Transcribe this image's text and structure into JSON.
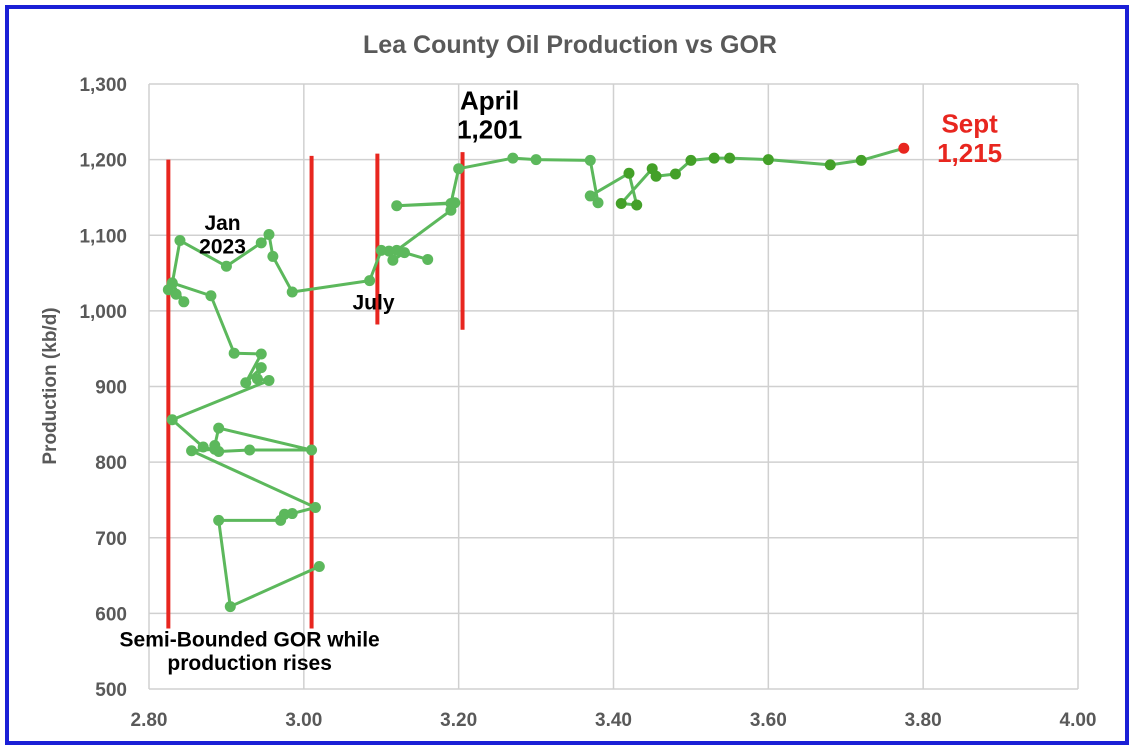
{
  "chart_data": {
    "type": "scatter",
    "title": "Lea County Oil Production vs GOR",
    "xlabel": "",
    "ylabel": "Production (kb/d)",
    "xlim": [
      2.8,
      4.0
    ],
    "ylim": [
      500,
      1300
    ],
    "x_ticks": [
      "2.80",
      "3.00",
      "3.20",
      "3.40",
      "3.60",
      "3.80",
      "4.00"
    ],
    "x_tick_values": [
      2.8,
      3.0,
      3.2,
      3.4,
      3.6,
      3.8,
      4.0
    ],
    "y_ticks": [
      "500",
      "600",
      "700",
      "800",
      "900",
      "1,000",
      "1,100",
      "1,200",
      "1,300"
    ],
    "y_tick_values": [
      500,
      600,
      700,
      800,
      900,
      1000,
      1100,
      1200,
      1300
    ],
    "grid": true,
    "series": [
      {
        "color": "#5cb85c",
        "marker_colors": [
          "#5cb85c",
          "#43a028"
        ],
        "points": [
          [
            3.02,
            662
          ],
          [
            2.905,
            609
          ],
          [
            2.89,
            723
          ],
          [
            2.97,
            723
          ],
          [
            2.975,
            731
          ],
          [
            2.985,
            732
          ],
          [
            3.015,
            740
          ],
          [
            2.855,
            815
          ],
          [
            2.885,
            817
          ],
          [
            2.885,
            822
          ],
          [
            2.89,
            845
          ],
          [
            3.01,
            816
          ],
          [
            2.93,
            816
          ],
          [
            2.89,
            814
          ],
          [
            2.87,
            820
          ],
          [
            2.83,
            856
          ],
          [
            2.955,
            908
          ],
          [
            2.94,
            910
          ],
          [
            2.945,
            925
          ],
          [
            2.925,
            905
          ],
          [
            2.945,
            943
          ],
          [
            2.91,
            944
          ],
          [
            2.88,
            1020
          ],
          [
            2.83,
            1037
          ],
          [
            2.825,
            1028
          ],
          [
            2.835,
            1022
          ],
          [
            2.845,
            1012
          ],
          [
            2.83,
            1036
          ],
          [
            2.84,
            1093
          ],
          [
            2.9,
            1059
          ],
          [
            2.945,
            1090
          ],
          [
            2.955,
            1101
          ],
          [
            2.96,
            1072
          ],
          [
            2.985,
            1025
          ],
          [
            3.085,
            1040
          ],
          [
            3.1,
            1080
          ],
          [
            3.11,
            1079
          ],
          [
            3.115,
            1067
          ],
          [
            3.13,
            1077
          ],
          [
            3.16,
            1068
          ],
          [
            3.12,
            1080
          ],
          [
            3.19,
            1133
          ],
          [
            3.195,
            1143
          ],
          [
            3.12,
            1139
          ],
          [
            3.19,
            1142
          ],
          [
            3.2,
            1188
          ],
          [
            3.27,
            1202
          ],
          [
            3.3,
            1200
          ],
          [
            3.37,
            1199
          ],
          [
            3.38,
            1143
          ],
          [
            3.37,
            1152
          ],
          [
            3.42,
            1182
          ],
          [
            3.43,
            1140
          ],
          [
            3.41,
            1142
          ],
          [
            3.45,
            1188
          ],
          [
            3.455,
            1178
          ],
          [
            3.48,
            1181
          ],
          [
            3.5,
            1199
          ],
          [
            3.53,
            1202
          ],
          [
            3.55,
            1202
          ],
          [
            3.6,
            1200
          ],
          [
            3.68,
            1193
          ],
          [
            3.72,
            1199
          ],
          [
            3.775,
            1215
          ]
        ]
      }
    ],
    "last_point_color": "#e8261f",
    "vertical_markers": [
      {
        "x": 2.825,
        "y_from": 580,
        "y_to": 1200
      },
      {
        "x": 3.01,
        "y_from": 580,
        "y_to": 1205
      },
      {
        "x": 3.095,
        "y_from": 982,
        "y_to": 1208
      },
      {
        "x": 3.205,
        "y_from": 975,
        "y_to": 1210
      }
    ],
    "marker_color": "#e8261f",
    "annotations": [
      {
        "text": "Jan",
        "x": 2.895,
        "y": 1107,
        "style": "ann"
      },
      {
        "text": "2023",
        "x": 2.895,
        "y": 1076,
        "style": "ann"
      },
      {
        "text": "July",
        "x": 3.09,
        "y": 1002,
        "style": "ann"
      },
      {
        "text": "April",
        "x": 3.24,
        "y": 1266,
        "style": "ann-big"
      },
      {
        "text": "1,201",
        "x": 3.24,
        "y": 1228,
        "style": "ann-big"
      },
      {
        "text": "Sept",
        "x": 3.86,
        "y": 1236,
        "style": "ann-red"
      },
      {
        "text": "1,215",
        "x": 3.86,
        "y": 1197,
        "style": "ann-red"
      },
      {
        "text": "Semi-Bounded GOR while",
        "x": 2.93,
        "y": 556,
        "style": "ann"
      },
      {
        "text": "production rises",
        "x": 2.93,
        "y": 525,
        "style": "ann"
      }
    ],
    "annotation_red_color": "#e8261f"
  }
}
